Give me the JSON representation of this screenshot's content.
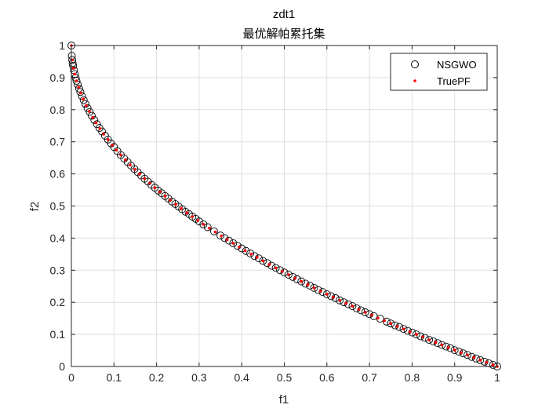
{
  "chart_data": {
    "type": "scatter",
    "title": "zdt1",
    "subtitle": "最优解帕累托集",
    "xlabel": "f1",
    "ylabel": "f2",
    "xlim": [
      0,
      1
    ],
    "ylim": [
      0,
      1
    ],
    "xticks": [
      "0",
      "0.1",
      "0.2",
      "0.3",
      "0.4",
      "0.5",
      "0.6",
      "0.7",
      "0.8",
      "0.9",
      "1"
    ],
    "yticks": [
      "0",
      "0.1",
      "0.2",
      "0.3",
      "0.4",
      "0.5",
      "0.6",
      "0.7",
      "0.8",
      "0.9",
      "1"
    ],
    "grid": true,
    "legend_position": "top-right",
    "series": [
      {
        "name": "NSGWO",
        "marker": "open-circle",
        "color": "#000000",
        "x": [
          0,
          0.001,
          0.002,
          0.003,
          0.004,
          0.006,
          0.008,
          0.01,
          0.012,
          0.015,
          0.018,
          0.021,
          0.025,
          0.029,
          0.033,
          0.038,
          0.043,
          0.048,
          0.054,
          0.06,
          0.066,
          0.072,
          0.079,
          0.086,
          0.093,
          0.1,
          0.108,
          0.116,
          0.124,
          0.132,
          0.14,
          0.148,
          0.156,
          0.164,
          0.172,
          0.18,
          0.188,
          0.196,
          0.204,
          0.212,
          0.22,
          0.228,
          0.236,
          0.244,
          0.252,
          0.26,
          0.268,
          0.276,
          0.284,
          0.292,
          0.3,
          0.31,
          0.32,
          0.335,
          0.35,
          0.36,
          0.37,
          0.38,
          0.39,
          0.4,
          0.41,
          0.42,
          0.43,
          0.44,
          0.45,
          0.46,
          0.47,
          0.48,
          0.49,
          0.5,
          0.51,
          0.52,
          0.53,
          0.54,
          0.55,
          0.56,
          0.57,
          0.58,
          0.59,
          0.6,
          0.61,
          0.62,
          0.63,
          0.64,
          0.65,
          0.66,
          0.67,
          0.68,
          0.69,
          0.7,
          0.71,
          0.725,
          0.74,
          0.75,
          0.76,
          0.77,
          0.78,
          0.79,
          0.8,
          0.81,
          0.82,
          0.83,
          0.84,
          0.85,
          0.86,
          0.87,
          0.88,
          0.89,
          0.9,
          0.91,
          0.92,
          0.93,
          0.94,
          0.95,
          0.96,
          0.97,
          0.98,
          0.99,
          1.0
        ],
        "y": [
          1.0,
          0.968,
          0.955,
          0.945,
          0.937,
          0.923,
          0.911,
          0.9,
          0.89,
          0.878,
          0.866,
          0.855,
          0.842,
          0.83,
          0.818,
          0.805,
          0.793,
          0.781,
          0.768,
          0.755,
          0.743,
          0.732,
          0.719,
          0.707,
          0.695,
          0.684,
          0.671,
          0.659,
          0.648,
          0.637,
          0.626,
          0.615,
          0.605,
          0.595,
          0.585,
          0.576,
          0.566,
          0.557,
          0.548,
          0.54,
          0.531,
          0.523,
          0.514,
          0.506,
          0.498,
          0.49,
          0.482,
          0.475,
          0.467,
          0.46,
          0.452,
          0.443,
          0.434,
          0.421,
          0.408,
          0.4,
          0.392,
          0.384,
          0.376,
          0.368,
          0.36,
          0.352,
          0.344,
          0.337,
          0.329,
          0.322,
          0.314,
          0.307,
          0.3,
          0.293,
          0.286,
          0.279,
          0.272,
          0.265,
          0.258,
          0.252,
          0.245,
          0.238,
          0.232,
          0.225,
          0.219,
          0.213,
          0.206,
          0.2,
          0.194,
          0.188,
          0.181,
          0.175,
          0.169,
          0.163,
          0.157,
          0.149,
          0.14,
          0.134,
          0.128,
          0.123,
          0.117,
          0.111,
          0.106,
          0.1,
          0.094,
          0.089,
          0.083,
          0.078,
          0.073,
          0.067,
          0.062,
          0.057,
          0.051,
          0.046,
          0.041,
          0.036,
          0.03,
          0.025,
          0.02,
          0.015,
          0.01,
          0.005,
          0.0
        ]
      },
      {
        "name": "TruePF",
        "marker": "dot",
        "color": "#ff0000",
        "x": [
          0,
          0.002,
          0.005,
          0.008,
          0.012,
          0.017,
          0.022,
          0.028,
          0.035,
          0.042,
          0.05,
          0.058,
          0.067,
          0.076,
          0.086,
          0.096,
          0.106,
          0.116,
          0.127,
          0.138,
          0.149,
          0.16,
          0.172,
          0.184,
          0.196,
          0.208,
          0.22,
          0.232,
          0.245,
          0.258,
          0.271,
          0.284,
          0.297,
          0.31,
          0.324,
          0.338,
          0.352,
          0.366,
          0.38,
          0.394,
          0.408,
          0.422,
          0.436,
          0.45,
          0.465,
          0.48,
          0.495,
          0.51,
          0.525,
          0.54,
          0.555,
          0.57,
          0.585,
          0.6,
          0.615,
          0.63,
          0.645,
          0.66,
          0.675,
          0.69,
          0.705,
          0.72,
          0.735,
          0.75,
          0.765,
          0.78,
          0.795,
          0.81,
          0.825,
          0.84,
          0.855,
          0.87,
          0.885,
          0.9,
          0.915,
          0.93,
          0.945,
          0.96,
          0.975,
          0.99,
          1.0
        ],
        "y": [
          1.0,
          0.955,
          0.929,
          0.911,
          0.89,
          0.87,
          0.852,
          0.833,
          0.813,
          0.795,
          0.776,
          0.759,
          0.741,
          0.724,
          0.707,
          0.69,
          0.674,
          0.659,
          0.644,
          0.628,
          0.614,
          0.6,
          0.585,
          0.571,
          0.557,
          0.544,
          0.531,
          0.518,
          0.505,
          0.492,
          0.479,
          0.467,
          0.455,
          0.443,
          0.431,
          0.419,
          0.407,
          0.395,
          0.384,
          0.372,
          0.361,
          0.35,
          0.34,
          0.329,
          0.318,
          0.307,
          0.296,
          0.286,
          0.275,
          0.265,
          0.255,
          0.245,
          0.235,
          0.225,
          0.216,
          0.206,
          0.197,
          0.188,
          0.178,
          0.169,
          0.16,
          0.151,
          0.143,
          0.134,
          0.125,
          0.117,
          0.108,
          0.1,
          0.092,
          0.083,
          0.075,
          0.067,
          0.059,
          0.051,
          0.043,
          0.036,
          0.028,
          0.02,
          0.013,
          0.005,
          0.0
        ]
      }
    ]
  }
}
